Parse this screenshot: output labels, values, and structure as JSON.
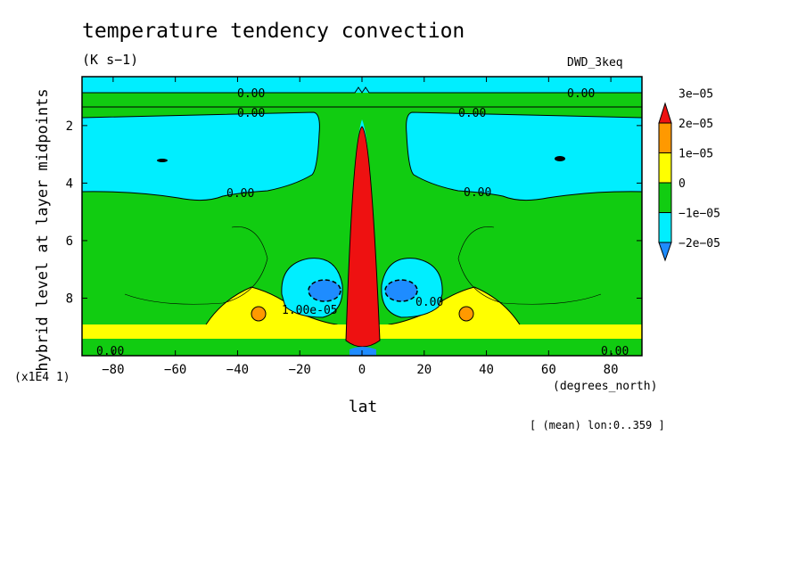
{
  "page": {
    "title": "temperature tendency convection",
    "units": "(K s−1)",
    "experiment": "DWD_3keq",
    "note": "[ (mean) lon:0..359 ]",
    "ylabel": "hybrid level at layer midpoints",
    "xlabel": "lat",
    "xunit": "(degrees_north)",
    "yscale": "(x1E4 1)"
  },
  "chart_data": {
    "type": "heatmap",
    "title": "temperature tendency convection",
    "xlabel": "lat",
    "ylabel": "hybrid level at layer midpoints",
    "xlim": [
      -90,
      90
    ],
    "ylim": [
      10,
      0.3
    ],
    "y_scale_factor": "(x1E4 1)",
    "x_ticks": [
      -80,
      -60,
      -40,
      -20,
      0,
      20,
      40,
      60,
      80
    ],
    "x_tick_labels": [
      "−80",
      "−60",
      "−40",
      "−20",
      "0",
      "20",
      "40",
      "60",
      "80"
    ],
    "y_ticks": [
      2,
      4,
      6,
      8
    ],
    "y_tick_labels": [
      "2",
      "4",
      "6",
      "8"
    ],
    "colorbar": {
      "levels": [
        -2e-05,
        -1e-05,
        0,
        1e-05,
        2e-05,
        3e-05
      ],
      "labels": [
        "−2e−05",
        "−1e−05",
        "0",
        "1e−05",
        "2e−05",
        "3e−05"
      ],
      "colors": [
        "#1e8cff",
        "#00eeff",
        "#11cc11",
        "#ffff00",
        "#ff9900",
        "#ee1111"
      ]
    },
    "contour_labels": [
      "0.00",
      "0.00",
      "0.00",
      "0.00",
      "0.00",
      "0.00",
      "0.00",
      "0.00",
      "0.00",
      "1.00e-05"
    ],
    "colors": {
      "neg2": "#1e8cff",
      "neg1": "#00eeff",
      "zero": "#11cc11",
      "pos1": "#ffff00",
      "pos2": "#ff9900",
      "pos3": "#ee1111"
    }
  }
}
